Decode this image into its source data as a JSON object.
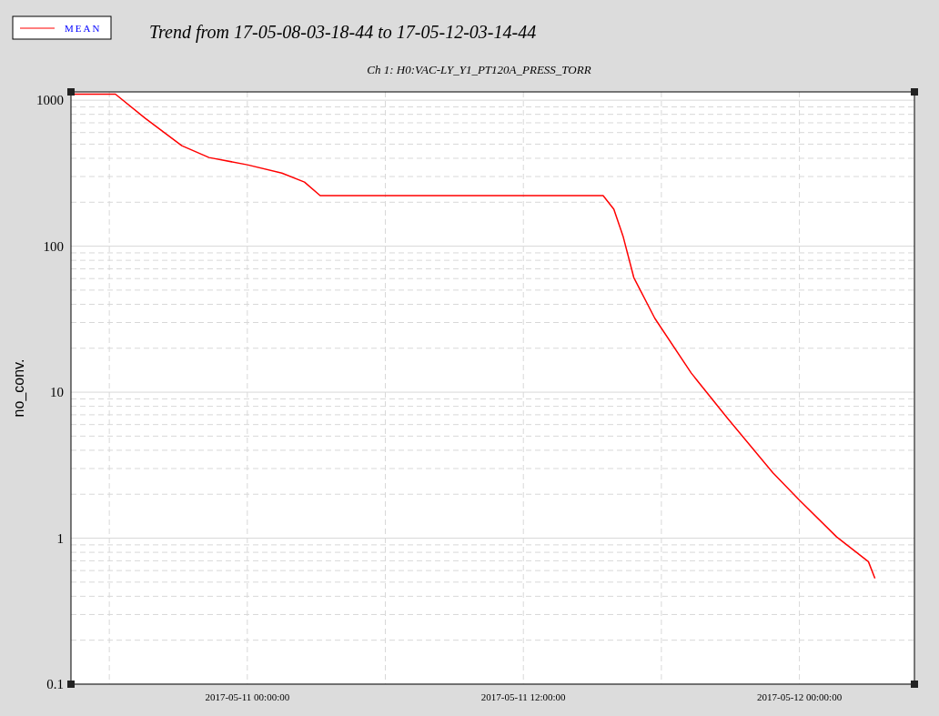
{
  "chart_data": {
    "type": "line",
    "title": "Trend from 17-05-08-03-18-44 to 17-05-12-03-14-44",
    "subtitle": "Ch 1: H0:VAC-LY_Y1_PT120A_PRESS_TORR",
    "ylabel": "no_conv.",
    "x": [
      "2017-05-10T16:25",
      "2017-05-10T18:16",
      "2017-05-10T19:34",
      "2017-05-10T21:09",
      "2017-05-10T22:20",
      "2017-05-11T00:00",
      "2017-05-11T01:30",
      "2017-05-11T02:29",
      "2017-05-11T03:10",
      "2017-05-11T15:28",
      "2017-05-11T15:56",
      "2017-05-11T16:20",
      "2017-05-11T16:48",
      "2017-05-11T17:43",
      "2017-05-11T19:18",
      "2017-05-11T20:53",
      "2017-05-11T22:51",
      "2017-05-12T00:00",
      "2017-05-12T01:37",
      "2017-05-12T03:00",
      "2017-05-12T03:17"
    ],
    "series": [
      {
        "name": "MEAN",
        "color": "#ff0000",
        "values": [
          1100,
          1100,
          750,
          488,
          405,
          361,
          317,
          275,
          222,
          222,
          179,
          117,
          61,
          32,
          13.5,
          6.6,
          2.8,
          1.82,
          1.02,
          0.69,
          0.53
        ]
      }
    ],
    "log": "y",
    "ylim": [
      0.1,
      1140
    ],
    "yticks": [
      0.1,
      1,
      10,
      100,
      1000
    ],
    "xlim": [
      "2017-05-10T16:20",
      "2017-05-12T05:00"
    ],
    "xticks": [
      {
        "value": "2017-05-10T18:00",
        "label": null
      },
      {
        "value": "2017-05-11T00:00",
        "label": "2017-05-11 00:00:00"
      },
      {
        "value": "2017-05-11T06:00",
        "label": null
      },
      {
        "value": "2017-05-11T12:00",
        "label": "2017-05-11 12:00:00"
      },
      {
        "value": "2017-05-11T18:00",
        "label": null
      },
      {
        "value": "2017-05-12T00:00",
        "label": "2017-05-12 00:00:00"
      }
    ],
    "grid": true,
    "legend": "top left",
    "line_style": "solid",
    "marker": "none"
  }
}
